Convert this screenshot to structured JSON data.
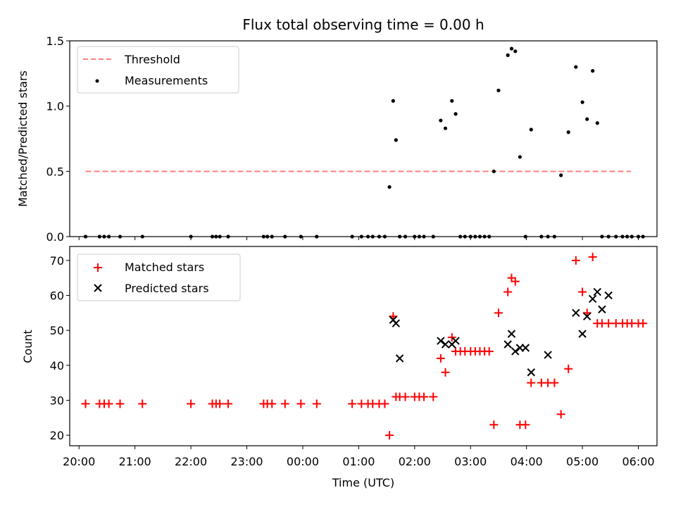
{
  "chart_data": [
    {
      "type": "scatter",
      "title": "Flux total observing time = 0.00 h",
      "xlabel": "",
      "ylabel": "Matched/Predicted stars",
      "xlim": [
        "19:50",
        "06:20"
      ],
      "ylim": [
        0,
        1.5
      ],
      "yticks": [
        "0.0",
        "0.5",
        "1.0",
        "1.5"
      ],
      "legend_position": "top-left",
      "threshold": {
        "name": "Threshold",
        "value": 0.5,
        "x_start": "20:07",
        "x_end": "05:52",
        "color": "#ff8080",
        "style": "dashed"
      },
      "series": [
        {
          "name": "Measurements",
          "color": "#000000",
          "marker": "dot",
          "x": [
            "20:07",
            "20:22",
            "20:27",
            "20:32",
            "20:44",
            "21:08",
            "22:00",
            "22:23",
            "22:27",
            "22:31",
            "22:40",
            "23:18",
            "23:22",
            "23:27",
            "23:41",
            "23:58",
            "24:15",
            "24:53",
            "25:03",
            "25:10",
            "25:15",
            "25:22",
            "25:28",
            "25:33",
            "25:37",
            "25:40",
            "25:44",
            "25:50",
            "26:00",
            "26:05",
            "26:10",
            "26:20",
            "26:28",
            "26:33",
            "26:40",
            "26:44",
            "26:49",
            "26:54",
            "27:00",
            "27:05",
            "27:10",
            "27:15",
            "27:20",
            "27:25",
            "27:30",
            "27:40",
            "27:44",
            "27:48",
            "27:53",
            "27:59",
            "28:05",
            "28:16",
            "28:23",
            "28:30",
            "28:37",
            "28:45",
            "28:53",
            "29:00",
            "29:05",
            "29:11",
            "29:16",
            "29:21",
            "29:28",
            "29:36",
            "29:43",
            "29:48",
            "29:53",
            "30:00",
            "30:05"
          ],
          "y": [
            0,
            0,
            0,
            0,
            0,
            0,
            0,
            0,
            0,
            0,
            0,
            0,
            0,
            0,
            0,
            0,
            0,
            0,
            0,
            0,
            0,
            0,
            0,
            0.38,
            1.04,
            0.74,
            0,
            0,
            0,
            0,
            0,
            0,
            0.89,
            0.83,
            1.04,
            0.94,
            0,
            0,
            0,
            0,
            0,
            0,
            0,
            0.5,
            1.12,
            1.39,
            1.44,
            1.42,
            0.61,
            0,
            0.82,
            0,
            0,
            0,
            0.47,
            0.8,
            1.3,
            1.03,
            0.9,
            1.27,
            0.87,
            0,
            0,
            0,
            0,
            0,
            0,
            0,
            0
          ]
        }
      ]
    },
    {
      "type": "scatter",
      "title": "",
      "xlabel": "Time (UTC)",
      "ylabel": "Count",
      "xlim": [
        "19:50",
        "06:20"
      ],
      "ylim": [
        17,
        74
      ],
      "yticks": [
        "20",
        "30",
        "40",
        "50",
        "60",
        "70"
      ],
      "xticks": [
        "20:00",
        "21:00",
        "22:00",
        "23:00",
        "00:00",
        "01:00",
        "02:00",
        "03:00",
        "04:00",
        "05:00",
        "06:00"
      ],
      "legend_position": "top-left",
      "series": [
        {
          "name": "Matched stars",
          "color": "#ff0000",
          "marker": "plus",
          "x": [
            "20:07",
            "20:22",
            "20:27",
            "20:32",
            "20:44",
            "21:08",
            "22:00",
            "22:23",
            "22:27",
            "22:31",
            "22:40",
            "23:18",
            "23:22",
            "23:27",
            "23:41",
            "23:58",
            "24:15",
            "24:53",
            "25:03",
            "25:10",
            "25:15",
            "25:22",
            "25:28",
            "25:33",
            "25:37",
            "25:40",
            "25:44",
            "25:50",
            "26:00",
            "26:05",
            "26:10",
            "26:20",
            "26:28",
            "26:33",
            "26:40",
            "26:44",
            "26:49",
            "26:54",
            "27:00",
            "27:05",
            "27:10",
            "27:15",
            "27:20",
            "27:25",
            "27:30",
            "27:40",
            "27:44",
            "27:48",
            "27:53",
            "27:59",
            "28:05",
            "28:16",
            "28:23",
            "28:30",
            "28:37",
            "28:45",
            "28:53",
            "29:00",
            "29:05",
            "29:11",
            "29:16",
            "29:21",
            "29:28",
            "29:36",
            "29:43",
            "29:48",
            "29:53",
            "30:00",
            "30:05"
          ],
          "y": [
            29,
            29,
            29,
            29,
            29,
            29,
            29,
            29,
            29,
            29,
            29,
            29,
            29,
            29,
            29,
            29,
            29,
            29,
            29,
            29,
            29,
            29,
            29,
            20,
            54,
            31,
            31,
            31,
            31,
            31,
            31,
            31,
            42,
            38,
            48,
            44,
            44,
            44,
            44,
            44,
            44,
            44,
            44,
            23,
            55,
            61,
            65,
            64,
            23,
            23,
            35,
            35,
            35,
            35,
            26,
            39,
            70,
            61,
            55,
            71,
            52,
            52,
            52,
            52,
            52,
            52,
            52,
            52,
            52
          ]
        },
        {
          "name": "Predicted stars",
          "color": "#000000",
          "marker": "x",
          "x": [
            "25:37",
            "25:40",
            "25:44",
            "26:28",
            "26:33",
            "26:40",
            "26:44",
            "27:40",
            "27:44",
            "27:48",
            "27:53",
            "27:59",
            "28:05",
            "28:23",
            "28:53",
            "29:00",
            "29:05",
            "29:11",
            "29:16",
            "29:21",
            "29:28"
          ],
          "y": [
            53,
            52,
            42,
            47,
            46,
            46,
            47,
            46,
            49,
            44,
            45,
            45,
            38,
            43,
            55,
            49,
            54,
            59,
            61,
            56,
            60
          ]
        }
      ]
    }
  ]
}
